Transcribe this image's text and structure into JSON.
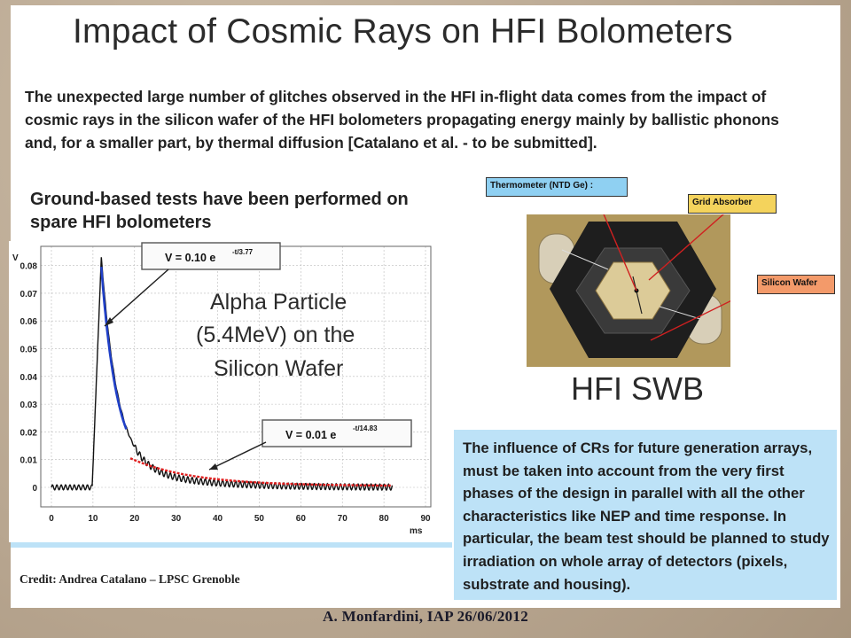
{
  "slide": {
    "title": "Impact of Cosmic Rays on HFI Bolometers",
    "intro": "The unexpected large number of glitches observed in the HFI in-flight data comes from the impact of cosmic rays in the silicon wafer of the HFI bolometers propagating energy mainly by ballistic phonons and, for a smaller part, by thermal diffusion [Catalano et al. - to be submitted].",
    "ground_tests": "Ground-based tests have been performed on spare HFI bolometers",
    "credit": "Credit: Andrea Catalano – LPSC Grenoble",
    "hfi_label": "HFI SWB",
    "influence": "The influence of CRs for future generation arrays, must be taken into account from the very first phases of the design in parallel with all the other characteristics like NEP and time response. In particular, the beam test should be planned to study irradiation on whole array of detectors (pixels, substrate and housing).",
    "footer": "A. Monfardini, IAP 26/06/2012"
  },
  "photo_callouts": {
    "thermometer": "Thermometer (NTD Ge) :",
    "grid": "Grid Absorber",
    "silicon": "Silicon Wafer"
  },
  "colors": {
    "panel_blue": "#bde2f7",
    "fit_fast": "#2040c8",
    "fit_slow": "#e02020",
    "signal": "#111111"
  },
  "chart_data": {
    "type": "line",
    "xlabel": "ms",
    "ylabel": "V",
    "xlim": [
      0,
      90
    ],
    "ylim": [
      0,
      0.085
    ],
    "xticks": [
      "0",
      "10",
      "20",
      "30",
      "40",
      "50",
      "60",
      "70",
      "80",
      "90"
    ],
    "yticks": [
      "0",
      "0.01",
      "0.02",
      "0.03",
      "0.04",
      "0.05",
      "0.06",
      "0.07",
      "0.08"
    ],
    "annotation": "Alpha Particle (5.4MeV) on the Silicon Wafer",
    "fit_fast": {
      "label_main": "V = 0.10 e",
      "label_exp": "-t/3.77",
      "amplitude": 0.1,
      "tau": 3.77,
      "x_range": [
        12,
        18
      ]
    },
    "fit_slow": {
      "label_main": "V = 0.01 e",
      "label_exp": "-t/14.83",
      "amplitude": 0.01,
      "tau": 14.83,
      "x_range": [
        19,
        82
      ]
    },
    "signal": {
      "baseline_end": 9.8,
      "peak_x": 12.0,
      "peak_y": 0.083,
      "end_x": 82
    }
  }
}
